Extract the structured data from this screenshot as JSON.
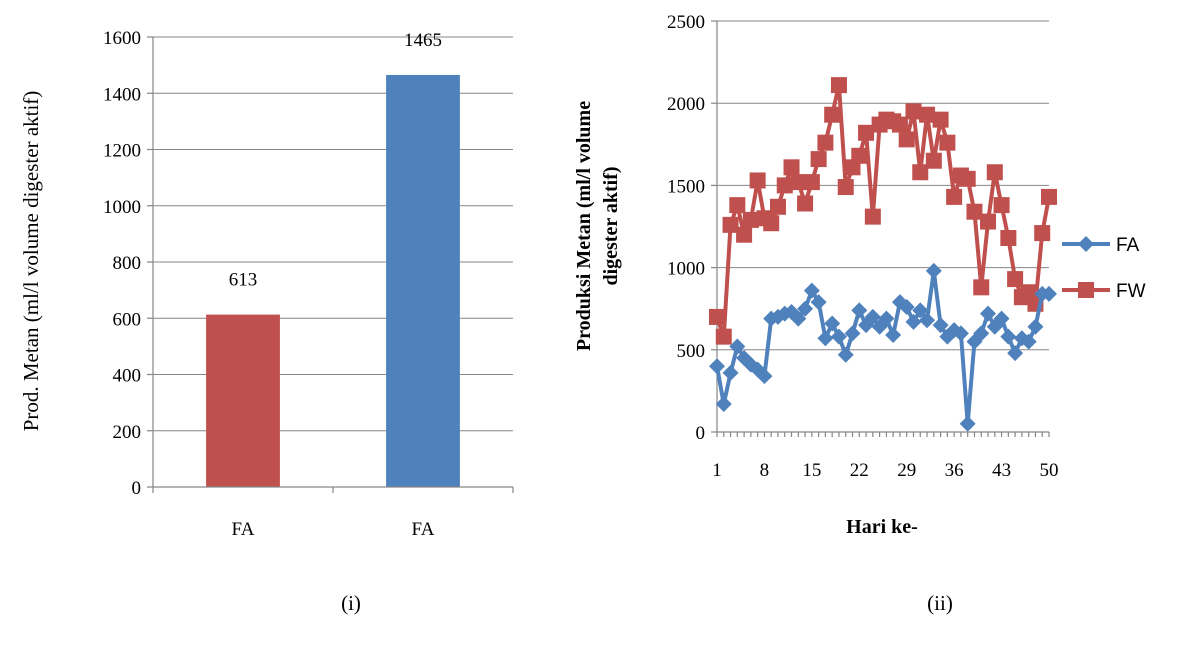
{
  "colors": {
    "red": "#C0504D",
    "blue": "#4F81BD",
    "grid": "#868686"
  },
  "captions": {
    "left": "(i)",
    "right": "(ii)"
  },
  "chart_data": [
    {
      "type": "bar",
      "categories": [
        "FA",
        "FA"
      ],
      "values": [
        613,
        1465
      ],
      "data_labels": [
        "613",
        "1465"
      ],
      "bar_colors": [
        "#C0504D",
        "#4F81BD"
      ],
      "title": "",
      "xlabel": "",
      "ylabel": "Prod. Metan (ml/l volume digester aktif)",
      "ylim": [
        0,
        1600
      ],
      "yticks": [
        "0",
        "200",
        "400",
        "600",
        "800",
        "1000",
        "1200",
        "1400",
        "1600"
      ],
      "grid": true,
      "legend": "none"
    },
    {
      "type": "line",
      "title": "",
      "xlabel": "Hari ke-",
      "ylabel": "Produksi Metan (ml/l volume digester aktif)",
      "ylim": [
        0,
        2500
      ],
      "yticks": [
        "0",
        "500",
        "1000",
        "1500",
        "2000",
        "2500"
      ],
      "xlim": [
        1,
        50
      ],
      "xticks": [
        "1",
        "8",
        "15",
        "22",
        "29",
        "36",
        "43",
        "50"
      ],
      "grid": true,
      "legend": "right",
      "x": [
        1,
        2,
        3,
        4,
        5,
        6,
        7,
        8,
        9,
        10,
        11,
        12,
        13,
        14,
        15,
        16,
        17,
        18,
        19,
        20,
        21,
        22,
        23,
        24,
        25,
        26,
        27,
        28,
        29,
        30,
        31,
        32,
        33,
        34,
        35,
        36,
        37,
        38,
        39,
        40,
        41,
        42,
        43,
        44,
        45,
        46,
        47,
        48,
        49,
        50
      ],
      "series": [
        {
          "name": "FA",
          "color": "#4F81BD",
          "marker": "diamond",
          "values": [
            400,
            170,
            360,
            520,
            450,
            410,
            380,
            340,
            690,
            700,
            720,
            730,
            690,
            750,
            860,
            790,
            570,
            660,
            580,
            470,
            600,
            740,
            650,
            700,
            640,
            690,
            590,
            790,
            760,
            670,
            740,
            680,
            980,
            650,
            580,
            620,
            600,
            50,
            550,
            600,
            720,
            640,
            690,
            580,
            480,
            570,
            550,
            640,
            840,
            840
          ]
        },
        {
          "name": "FW",
          "color": "#C0504D",
          "marker": "square",
          "values": [
            700,
            580,
            1260,
            1380,
            1200,
            1290,
            1530,
            1300,
            1270,
            1370,
            1500,
            1610,
            1520,
            1390,
            1520,
            1660,
            1760,
            1930,
            2110,
            1490,
            1610,
            1680,
            1820,
            1310,
            1870,
            1900,
            1890,
            1870,
            1780,
            1950,
            1580,
            1930,
            1650,
            1900,
            1760,
            1430,
            1560,
            1540,
            1340,
            880,
            1280,
            1580,
            1380,
            1180,
            930,
            820,
            850,
            780,
            1210,
            1430
          ]
        }
      ]
    }
  ]
}
